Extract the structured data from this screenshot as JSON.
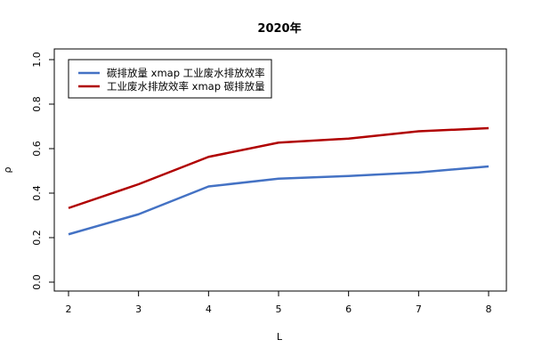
{
  "chart_data": {
    "type": "line",
    "title": "2020年",
    "xlabel": "L",
    "ylabel": "ρ",
    "x": [
      2,
      3,
      4,
      5,
      6,
      7,
      8
    ],
    "xlim": [
      2,
      8
    ],
    "ylim": [
      0,
      1
    ],
    "x_ticks": [
      "2",
      "3",
      "4",
      "5",
      "6",
      "7",
      "8"
    ],
    "y_ticks": [
      "0.0",
      "0.2",
      "0.4",
      "0.6",
      "0.8",
      "1.0"
    ],
    "grid": false,
    "legend_position": "top-left",
    "series": [
      {
        "name": "碳排放量 xmap 工业废水排放效率",
        "color": "#4472C4",
        "values": [
          0.215,
          0.305,
          0.43,
          0.465,
          0.477,
          0.493,
          0.52
        ]
      },
      {
        "name": "工业废水排放效率 xmap 碳排放量",
        "color": "#B00000",
        "values": [
          0.333,
          0.44,
          0.563,
          0.627,
          0.645,
          0.678,
          0.692
        ]
      }
    ]
  }
}
